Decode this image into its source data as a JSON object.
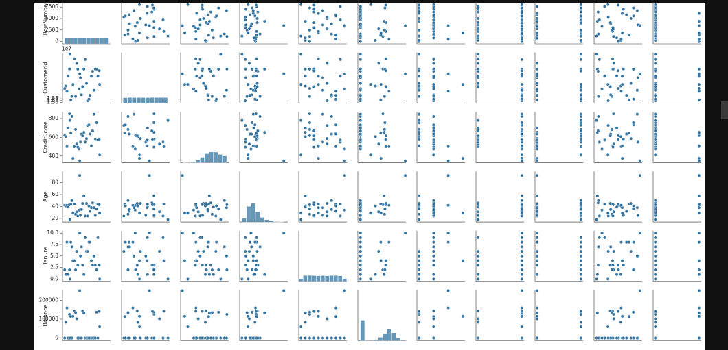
{
  "chart_data": {
    "type": "pairplot",
    "color": "#3274a1",
    "variables": [
      {
        "label": "RowNumber",
        "lim": [
          -500,
          10500
        ],
        "ticks": [
          0,
          2500,
          5000,
          7500
        ],
        "hist": {
          "bins": [
            0,
            1000,
            2000,
            3000,
            4000,
            5000,
            6000,
            7000,
            8000,
            9000,
            10000
          ],
          "counts": [
            1000,
            1000,
            1000,
            1000,
            1000,
            1000,
            1000,
            1000,
            1000,
            1000
          ]
        }
      },
      {
        "label": "CustomerId",
        "offset_label": "1e7",
        "lim": [
          15556000,
          15825000
        ],
        "ticks": [
          {
            "value": 15560000,
            "label": "1.56"
          },
          {
            "value": 15570000,
            "label": "1.57"
          },
          {
            "value": 15580000,
            "label": "1.58"
          }
        ],
        "hist": {
          "bins": [
            15565000,
            15590000,
            15615000,
            15640000,
            15665000,
            15690000,
            15715000,
            15740000,
            15765000,
            15790000,
            15815000
          ],
          "counts": [
            980,
            1010,
            995,
            1005,
            1000,
            990,
            1015,
            1000,
            1005,
            1000
          ]
        }
      },
      {
        "label": "CreditScore",
        "lim": [
          330,
          870
        ],
        "ticks": [
          400,
          600,
          800
        ],
        "hist": {
          "bins": [
            350,
            400,
            450,
            500,
            550,
            600,
            650,
            700,
            750,
            800,
            850
          ],
          "counts": [
            19,
            47,
            166,
            440,
            947,
            1560,
            1872,
            1860,
            1442,
            1160
          ]
        }
      },
      {
        "label": "Age",
        "lim": [
          14,
          99
        ],
        "ticks": [
          20,
          40,
          60,
          80
        ],
        "hist": {
          "bins": [
            18,
            26,
            34,
            42,
            50,
            58,
            66,
            74,
            82,
            92
          ],
          "counts": [
            650,
            2750,
            3300,
            1800,
            800,
            400,
            200,
            70,
            30
          ]
        }
      },
      {
        "label": "Tenure",
        "lim": [
          -0.5,
          10.5
        ],
        "ticks": [
          {
            "value": 0,
            "label": "0.0"
          },
          {
            "value": 2.5,
            "label": "2.5"
          },
          {
            "value": 5,
            "label": "5.0"
          },
          {
            "value": 7.5,
            "label": "7.5"
          },
          {
            "value": 10,
            "label": "10.0"
          }
        ],
        "hist": {
          "bins": [
            -0.5,
            0.5,
            1.5,
            2.5,
            3.5,
            4.5,
            5.5,
            6.5,
            7.5,
            8.5,
            9.5,
            10.5
          ],
          "counts": [
            413,
            1035,
            1048,
            1009,
            989,
            1012,
            967,
            1028,
            1025,
            984,
            490
          ]
        }
      },
      {
        "label": "Balance",
        "lim": [
          -14500,
          254500
        ],
        "ticks": [
          0,
          100000,
          200000
        ],
        "hist": {
          "bins": [
            0,
            25000,
            50000,
            75000,
            100000,
            125000,
            150000,
            175000,
            200000,
            225000,
            250000
          ],
          "counts": [
            3623,
            69,
            75,
            210,
            610,
            1300,
            2050,
            1400,
            500,
            163
          ]
        }
      },
      {
        "label": null,
        "lim": [
          0.85,
          4.15
        ]
      },
      {
        "label": null,
        "lim": [
          -0.05,
          1.05
        ]
      },
      {
        "label": null,
        "lim": [
          -0.05,
          1.05
        ]
      },
      {
        "label": null,
        "lim": [
          -10000,
          210000
        ]
      },
      {
        "label": null,
        "lim": [
          -0.05,
          1.05
        ]
      }
    ],
    "records": [
      [
        1,
        15634602,
        619,
        42,
        2,
        0,
        1,
        1,
        1,
        101349,
        1
      ],
      [
        250,
        15647311,
        608,
        41,
        1,
        83808,
        1,
        0,
        1,
        112543,
        0
      ],
      [
        520,
        15619304,
        502,
        42,
        8,
        159661,
        3,
        1,
        0,
        113932,
        1
      ],
      [
        800,
        15701354,
        699,
        39,
        1,
        0,
        2,
        0,
        0,
        93827,
        0
      ],
      [
        1100,
        15737888,
        850,
        43,
        2,
        125511,
        1,
        1,
        1,
        79084,
        0
      ],
      [
        1400,
        15574012,
        645,
        44,
        8,
        113756,
        2,
        1,
        0,
        149757,
        1
      ],
      [
        1650,
        15592531,
        822,
        50,
        7,
        0,
        2,
        1,
        1,
        10063,
        0
      ],
      [
        1900,
        15656148,
        376,
        29,
        4,
        115047,
        4,
        1,
        0,
        119347,
        1
      ],
      [
        2200,
        15792365,
        501,
        44,
        4,
        142051,
        2,
        0,
        1,
        74941,
        0
      ],
      [
        2500,
        15592389,
        684,
        27,
        2,
        134604,
        1,
        1,
        1,
        71726,
        0
      ],
      [
        2750,
        15767821,
        528,
        31,
        6,
        102017,
        2,
        0,
        0,
        80181,
        0
      ],
      [
        3000,
        15737173,
        497,
        24,
        3,
        0,
        2,
        1,
        0,
        76391,
        0
      ],
      [
        3300,
        15632264,
        476,
        34,
        10,
        0,
        2,
        1,
        0,
        26261,
        0
      ],
      [
        3600,
        15691483,
        549,
        25,
        5,
        0,
        2,
        0,
        0,
        190858,
        0
      ],
      [
        3850,
        15600882,
        635,
        35,
        7,
        0,
        2,
        1,
        1,
        65951,
        0
      ],
      [
        4100,
        15643966,
        616,
        45,
        3,
        143129,
        2,
        0,
        1,
        64327,
        0
      ],
      [
        4400,
        15737452,
        653,
        58,
        1,
        132603,
        1,
        1,
        0,
        5097,
        1
      ],
      [
        4700,
        15788218,
        549,
        24,
        9,
        0,
        2,
        1,
        1,
        14406,
        0
      ],
      [
        5000,
        15661507,
        587,
        45,
        6,
        0,
        1,
        0,
        0,
        158685,
        0
      ],
      [
        5250,
        15568982,
        726,
        24,
        6,
        0,
        2,
        1,
        1,
        54724,
        0
      ],
      [
        5550,
        15577657,
        732,
        41,
        8,
        0,
        2,
        1,
        1,
        170886,
        0
      ],
      [
        5800,
        15597945,
        636,
        32,
        8,
        0,
        2,
        1,
        0,
        138555,
        0
      ],
      [
        6100,
        15699309,
        510,
        38,
        4,
        0,
        1,
        1,
        0,
        118913,
        1
      ],
      [
        6400,
        15725737,
        669,
        46,
        3,
        0,
        2,
        0,
        1,
        8487,
        0
      ],
      [
        6700,
        15625047,
        846,
        38,
        5,
        0,
        1,
        1,
        1,
        187616,
        0
      ],
      [
        7000,
        15738191,
        577,
        25,
        3,
        0,
        2,
        0,
        1,
        124508,
        0
      ],
      [
        7300,
        15736816,
        756,
        36,
        2,
        136815,
        1,
        1,
        1,
        170041,
        0
      ],
      [
        7600,
        15700772,
        571,
        44,
        9,
        0,
        2,
        0,
        0,
        38433,
        0
      ],
      [
        7900,
        15728693,
        574,
        43,
        3,
        141349,
        1,
        1,
        1,
        100187,
        0
      ],
      [
        8000,
        15656300,
        411,
        29,
        0,
        59697,
        2,
        1,
        1,
        53483,
        0
      ],
      [
        3450,
        15712287,
        350,
        92,
        10,
        250898,
        3,
        1,
        0,
        199970,
        1
      ],
      [
        1200,
        15815690,
        780,
        18,
        0,
        0,
        1,
        0,
        1,
        1158,
        0
      ]
    ]
  }
}
